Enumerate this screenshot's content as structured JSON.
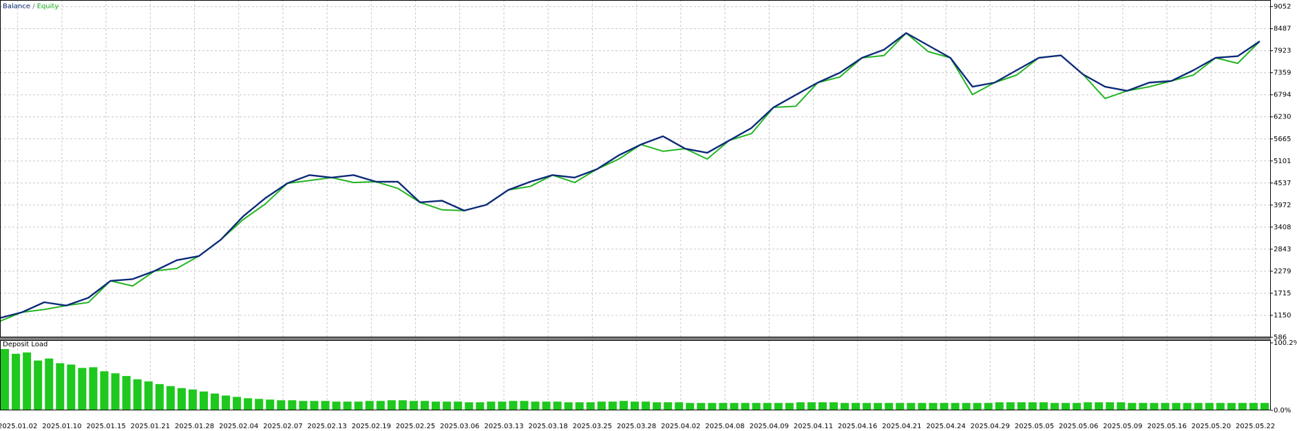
{
  "chart_data": [
    {
      "type": "line",
      "legend_separator": "/",
      "x": [
        0,
        0.5,
        1,
        1.5,
        2,
        2.5,
        3,
        3.5,
        4,
        4.5,
        5,
        5.5,
        6,
        6.5,
        7,
        7.5,
        8,
        8.5,
        9,
        9.5,
        10,
        10.5,
        11,
        11.5,
        12,
        12.5,
        13,
        13.5,
        14,
        14.5,
        15,
        15.5,
        16,
        16.5,
        17,
        17.5,
        18,
        18.5,
        19,
        19.5,
        20,
        20.5,
        21,
        21.5,
        22,
        22.5,
        23,
        23.5,
        24,
        24.5,
        25,
        25.5,
        26,
        26.5,
        27,
        27.5,
        28,
        28.5
      ],
      "series": [
        {
          "name": "Equity",
          "color": "#22b422",
          "values": [
            1000,
            1230,
            1300,
            1400,
            1480,
            2033,
            1900,
            2287,
            2350,
            2668,
            3090,
            3600,
            4000,
            4528,
            4600,
            4676,
            4550,
            4570,
            4400,
            4042,
            3850,
            3830,
            3979,
            4359,
            4450,
            4740,
            4550,
            4887,
            5150,
            5522,
            5350,
            5416,
            5150,
            5627,
            5800,
            6473,
            6500,
            7107,
            7250,
            7740,
            7800,
            8375,
            7900,
            7740,
            6800,
            7107,
            7300,
            7740,
            7805,
            7318,
            6700,
            6896,
            7000,
            7149,
            7300,
            7740,
            7600,
            8164
          ]
        },
        {
          "name": "Balance",
          "color": "#0c2a78",
          "values": [
            1082,
            1230,
            1484,
            1400,
            1600,
            2033,
            2076,
            2287,
            2562,
            2668,
            3090,
            3683,
            4148,
            4528,
            4740,
            4676,
            4740,
            4570,
            4570,
            4042,
            4084,
            3830,
            3979,
            4359,
            4570,
            4740,
            4676,
            4887,
            5247,
            5522,
            5733,
            5416,
            5310,
            5627,
            5945,
            6473,
            6790,
            7107,
            7360,
            7740,
            7951,
            8375,
            8058,
            7740,
            7002,
            7107,
            7424,
            7740,
            7805,
            7318,
            7002,
            6896,
            7107,
            7149,
            7424,
            7740,
            7783,
            8164
          ]
        }
      ],
      "ylim": [
        586,
        9221
      ],
      "yticks": [
        586,
        1150,
        1715,
        2279,
        2843,
        3408,
        3972,
        4537,
        5101,
        5665,
        6230,
        6794,
        7359,
        7923,
        8487,
        9052
      ],
      "grid": true
    },
    {
      "type": "bar",
      "title": "Deposit Load",
      "color": "#1ec81e",
      "xlim": [
        0,
        28.75
      ],
      "xticks": [
        {
          "value": 0.4,
          "label": "2025.01.02"
        },
        {
          "value": 1.4,
          "label": "2025.01.10"
        },
        {
          "value": 2.4,
          "label": "2025.01.15"
        },
        {
          "value": 3.4,
          "label": "2025.01.21"
        },
        {
          "value": 4.4,
          "label": "2025.01.28"
        },
        {
          "value": 5.4,
          "label": "2025.02.04"
        },
        {
          "value": 6.4,
          "label": "2025.02.07"
        },
        {
          "value": 7.4,
          "label": "2025.02.13"
        },
        {
          "value": 8.4,
          "label": "2025.02.19"
        },
        {
          "value": 9.4,
          "label": "2025.02.25"
        },
        {
          "value": 10.4,
          "label": "2025.03.06"
        },
        {
          "value": 11.4,
          "label": "2025.03.13"
        },
        {
          "value": 12.4,
          "label": "2025.03.18"
        },
        {
          "value": 13.4,
          "label": "2025.03.25"
        },
        {
          "value": 14.4,
          "label": "2025.03.28"
        },
        {
          "value": 15.4,
          "label": "2025.04.02"
        },
        {
          "value": 16.4,
          "label": "2025.04.08"
        },
        {
          "value": 17.4,
          "label": "2025.04.09"
        },
        {
          "value": 18.4,
          "label": "2025.04.11"
        },
        {
          "value": 19.4,
          "label": "2025.04.16"
        },
        {
          "value": 20.4,
          "label": "2025.04.21"
        },
        {
          "value": 21.4,
          "label": "2025.04.24"
        },
        {
          "value": 22.4,
          "label": "2025.04.29"
        },
        {
          "value": 23.4,
          "label": "2025.05.05"
        },
        {
          "value": 24.4,
          "label": "2025.05.06"
        },
        {
          "value": 25.4,
          "label": "2025.05.09"
        },
        {
          "value": 26.4,
          "label": "2025.05.16"
        },
        {
          "value": 27.4,
          "label": "2025.05.20"
        },
        {
          "value": 28.4,
          "label": "2025.05.22"
        }
      ],
      "x": [
        0,
        0.25,
        0.5,
        0.75,
        1,
        1.25,
        1.5,
        1.75,
        2,
        2.25,
        2.5,
        2.75,
        3,
        3.25,
        3.5,
        3.75,
        4,
        4.25,
        4.5,
        4.75,
        5,
        5.25,
        5.5,
        5.75,
        6,
        6.25,
        6.5,
        6.75,
        7,
        7.25,
        7.5,
        7.75,
        8,
        8.25,
        8.5,
        8.75,
        9,
        9.25,
        9.5,
        9.75,
        10,
        10.25,
        10.5,
        10.75,
        11,
        11.25,
        11.5,
        11.75,
        12,
        12.25,
        12.5,
        12.75,
        13,
        13.25,
        13.5,
        13.75,
        14,
        14.25,
        14.5,
        14.75,
        15,
        15.25,
        15.5,
        15.75,
        16,
        16.25,
        16.5,
        16.75,
        17,
        17.25,
        17.5,
        17.75,
        18,
        18.25,
        18.5,
        18.75,
        19,
        19.25,
        19.5,
        19.75,
        20,
        20.25,
        20.5,
        20.75,
        21,
        21.25,
        21.5,
        21.75,
        22,
        22.25,
        22.5,
        22.75,
        23,
        23.25,
        23.5,
        23.75,
        24,
        24.25,
        24.5,
        24.75,
        25,
        25.25,
        25.5,
        25.75,
        26,
        26.25,
        26.5,
        26.75,
        27,
        27.25,
        27.5,
        27.75,
        28,
        28.25,
        28.5
      ],
      "values": [
        91,
        84,
        86,
        74,
        77,
        70,
        68,
        63,
        64,
        58,
        55,
        51,
        46,
        43,
        39,
        36,
        33,
        31,
        28,
        25,
        22,
        20,
        18,
        17,
        16,
        15,
        15,
        14,
        14,
        14,
        13,
        13,
        13,
        14,
        14,
        15,
        15,
        14,
        14,
        13,
        13,
        13,
        12,
        12,
        13,
        13,
        14,
        14,
        13,
        13,
        13,
        12,
        12,
        12,
        13,
        13,
        14,
        13,
        13,
        12,
        12,
        12,
        11,
        11,
        11,
        11,
        11,
        11,
        11,
        11,
        11,
        11,
        12,
        12,
        12,
        12,
        11,
        11,
        11,
        11,
        11,
        11,
        11,
        11,
        11,
        11,
        11,
        11,
        11,
        11,
        12,
        12,
        12,
        12,
        12,
        11,
        11,
        11,
        12,
        12,
        12,
        12,
        11,
        11,
        11,
        11,
        11,
        11,
        11,
        11,
        11,
        11,
        11,
        11,
        11
      ],
      "ylim": [
        0,
        100.2
      ],
      "yticks": [
        {
          "value": 100.2,
          "label": "100.2%"
        },
        {
          "value": 0,
          "label": "0.0%"
        }
      ],
      "grid": true
    }
  ]
}
